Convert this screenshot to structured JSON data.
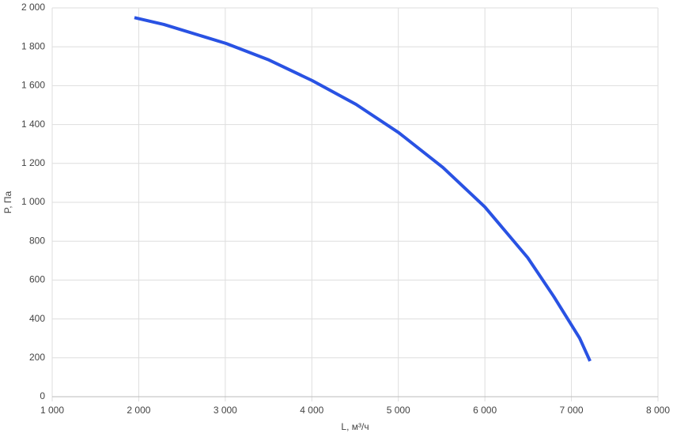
{
  "chart_data": {
    "type": "line",
    "x_label": "L, м³/ч",
    "y_label": "P, Па",
    "x": [
      1950,
      2290,
      3010,
      3505,
      4005,
      4510,
      5005,
      5515,
      6000,
      6495,
      6795,
      7095,
      7215
    ],
    "series": [
      {
        "color": "#2952e3",
        "values": [
          1950,
          1915,
          1817,
          1732,
          1626,
          1504,
          1358,
          1179,
          976,
          715,
          516,
          301,
          183
        ]
      }
    ],
    "xlim": [
      1000,
      8000
    ],
    "xticks": [
      {
        "value": 1000,
        "label": "1 000"
      },
      {
        "value": 2000,
        "label": "2 000"
      },
      {
        "value": 3000,
        "label": "3 000"
      },
      {
        "value": 4000,
        "label": "4 000"
      },
      {
        "value": 5000,
        "label": "5 000"
      },
      {
        "value": 6000,
        "label": "6 000"
      },
      {
        "value": 7000,
        "label": "7 000"
      },
      {
        "value": 8000,
        "label": "8 000"
      }
    ],
    "ylim": [
      0,
      2000
    ],
    "yticks": [
      0,
      200,
      400,
      600,
      800,
      {
        "value": 1000,
        "label": "1 000"
      },
      {
        "value": 1200,
        "label": "1 200"
      },
      {
        "value": 1400,
        "label": "1 400"
      },
      {
        "value": 1600,
        "label": "1 600"
      },
      {
        "value": 1800,
        "label": "1 800"
      },
      {
        "value": 2000,
        "label": "2 000"
      }
    ],
    "grid": true
  }
}
